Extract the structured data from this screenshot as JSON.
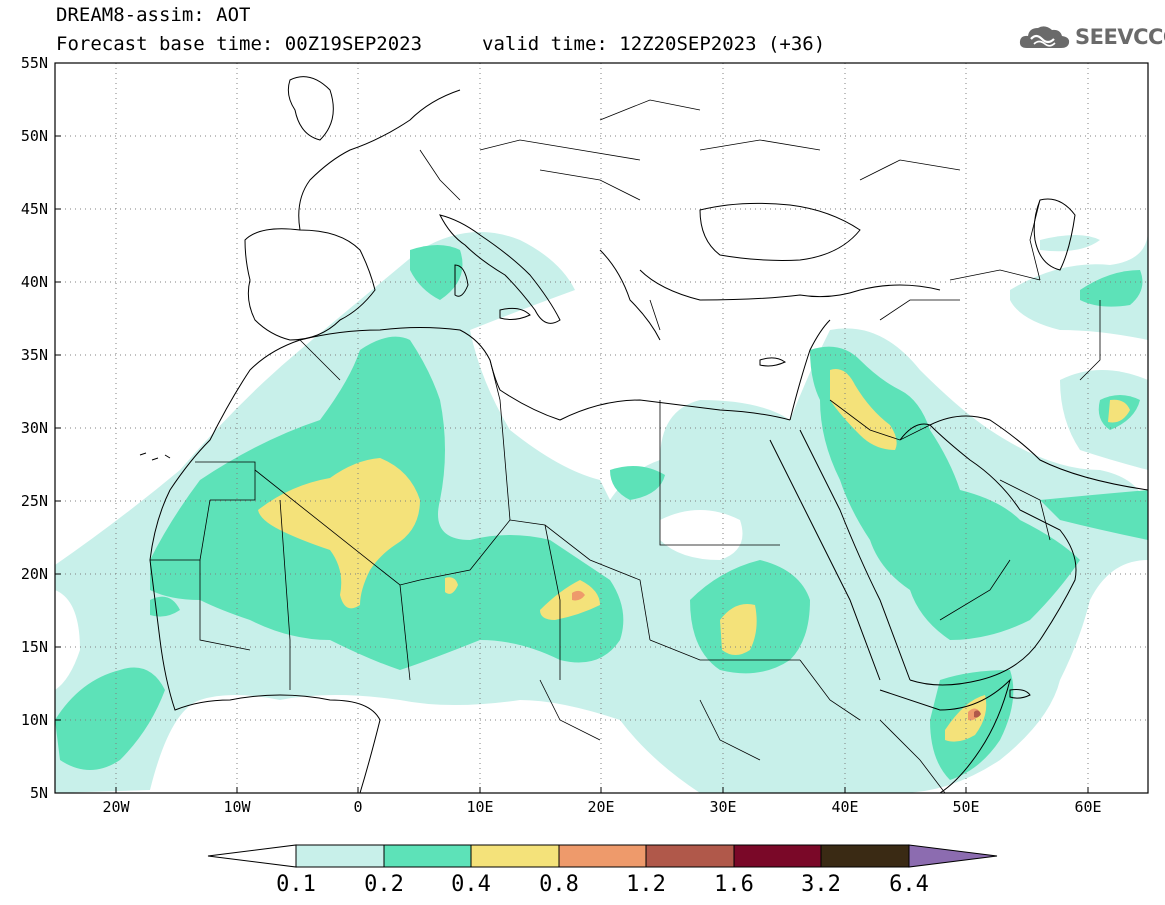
{
  "header": {
    "line1": "DREAM8-assim: AOT",
    "line2": "Forecast base time: 00Z19SEP2023",
    "line3": "valid time: 12Z20SEP2023 (+36)",
    "logo_text": "SEEVCCC"
  },
  "map": {
    "lon_range": [
      -25,
      65
    ],
    "lat_range": [
      5,
      55
    ],
    "lat_ticks": [
      "55N",
      "50N",
      "45N",
      "40N",
      "35N",
      "30N",
      "25N",
      "20N",
      "15N",
      "10N",
      "5N"
    ],
    "lon_ticks": [
      "20W",
      "10W",
      "0",
      "10E",
      "20E",
      "30E",
      "40E",
      "50E",
      "60E"
    ],
    "gridlines": "dotted"
  },
  "colorbar": {
    "labels": [
      "0.1",
      "0.2",
      "0.4",
      "0.8",
      "1.2",
      "1.6",
      "3.2",
      "6.4"
    ],
    "colors": [
      "#ffffff",
      "#c8f0ea",
      "#5de2b8",
      "#f4e27a",
      "#ee9a6b",
      "#b0584a",
      "#7a0828",
      "#3a2a14",
      "#8c6cb0"
    ]
  }
}
